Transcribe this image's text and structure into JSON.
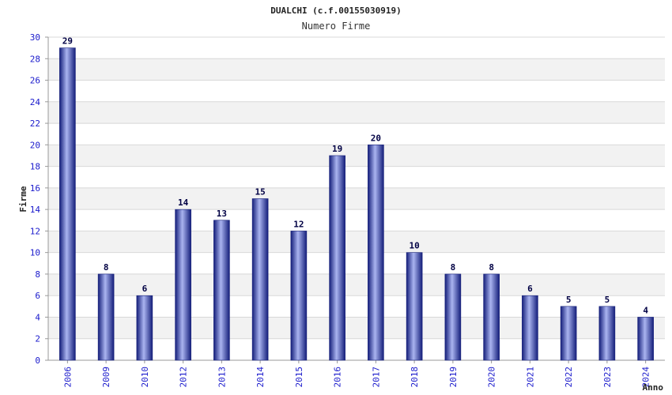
{
  "colors": {
    "bar_dark": "#141e7a",
    "bar_light": "#aab4f0",
    "band": "#f2f2f2",
    "grid": "#d8d8d8",
    "axis": "#999999",
    "tick_text": "#1a1acc"
  },
  "chart_data": {
    "type": "bar",
    "title": "DUALCHI (c.f.00155030919)",
    "subtitle": "Numero Firme",
    "xlabel": "Anno",
    "ylabel": "Firme",
    "categories": [
      "2006",
      "2009",
      "2010",
      "2012",
      "2013",
      "2014",
      "2015",
      "2016",
      "2017",
      "2018",
      "2019",
      "2020",
      "2021",
      "2022",
      "2023",
      "2024"
    ],
    "values": [
      29,
      8,
      6,
      14,
      13,
      15,
      12,
      19,
      20,
      10,
      8,
      8,
      6,
      5,
      5,
      4
    ],
    "ylim": [
      0,
      30
    ],
    "yticks": [
      "0",
      "2",
      "4",
      "6",
      "8",
      "10",
      "12",
      "14",
      "16",
      "18",
      "20",
      "22",
      "24",
      "26",
      "28",
      "30"
    ],
    "grid": true,
    "legend": "none"
  }
}
